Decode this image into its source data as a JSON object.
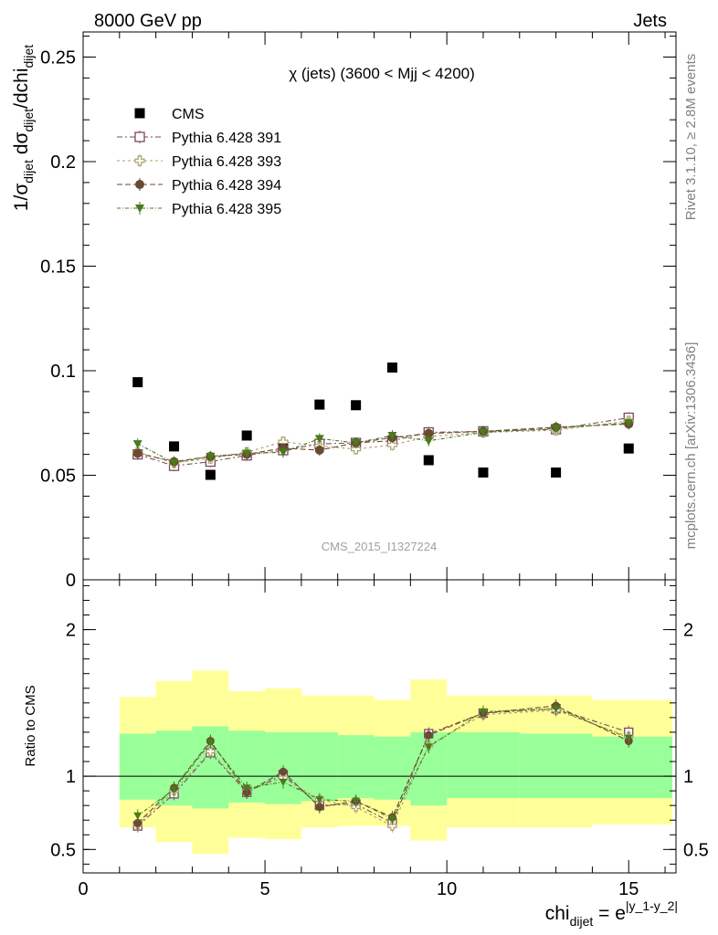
{
  "header": {
    "left": "8000 GeV pp",
    "right": "Jets"
  },
  "side_labels": {
    "rivet": "Rivet 3.1.10, ≥ 2.8M events",
    "mcplots": "mcplots.cern.ch [arXiv:1306.3436]"
  },
  "watermark": "CMS_2015_I1327224",
  "colors": {
    "cms": "#000000",
    "p391": "#7b4a5e",
    "p393": "#a8a06a",
    "p394": "#6b4a32",
    "p395": "#4a7a1c",
    "band_inner": "#99ff99",
    "band_outer": "#ffff99"
  },
  "chart_data": [
    {
      "type": "scatter",
      "title": "χ (jets) (3600 < Mjj < 4200)",
      "ylabel": "1/σ_dijet dσ_dijet/dchi_dijet",
      "xlim": [
        0,
        16.3
      ],
      "ylim": [
        0,
        0.262
      ],
      "yticks": [
        0,
        0.05,
        0.1,
        0.15,
        0.2,
        0.25
      ],
      "yticklabels": [
        "0",
        "0.05",
        "0.1",
        "0.15",
        "0.2",
        "0.25"
      ],
      "x": [
        1.5,
        2.5,
        3.5,
        4.5,
        5.5,
        6.5,
        7.5,
        8.5,
        9.5,
        11,
        13,
        15
      ],
      "series": [
        {
          "name": "CMS",
          "marker": "square",
          "values": [
            0.0945,
            0.0638,
            0.0502,
            0.069,
            0.0632,
            0.0838,
            0.0835,
            0.1015,
            0.0572,
            0.0513,
            0.0513,
            0.0628
          ]
        },
        {
          "name": "Pythia 6.428 391",
          "marker": "open-square",
          "values": [
            0.06,
            0.0545,
            0.0565,
            0.0595,
            0.062,
            0.065,
            0.0655,
            0.0665,
            0.0705,
            0.071,
            0.072,
            0.0775
          ]
        },
        {
          "name": "Pythia 6.428 393",
          "marker": "open-cross",
          "values": [
            0.061,
            0.056,
            0.058,
            0.061,
            0.066,
            0.064,
            0.0625,
            0.0645,
            0.0685,
            0.0705,
            0.0715,
            0.076
          ]
        },
        {
          "name": "Pythia 6.428 394",
          "marker": "circle",
          "values": [
            0.0605,
            0.0565,
            0.059,
            0.06,
            0.063,
            0.062,
            0.0655,
            0.068,
            0.07,
            0.071,
            0.073,
            0.0745
          ]
        },
        {
          "name": "Pythia 6.428 395",
          "marker": "triangle-down",
          "values": [
            0.065,
            0.056,
            0.059,
            0.0605,
            0.061,
            0.0675,
            0.0655,
            0.069,
            0.0665,
            0.0705,
            0.0725,
            0.075
          ]
        }
      ]
    },
    {
      "type": "scatter",
      "ylabel": "Ratio to CMS",
      "xlabel": "chi_dijet = e^|y_1-y_2|",
      "xlim": [
        0,
        16.3
      ],
      "ylim": [
        0.34,
        2.34
      ],
      "xticks": [
        0,
        5,
        10,
        15
      ],
      "xticklabels": [
        "0",
        "5",
        "10",
        "15"
      ],
      "yticks": [
        0.5,
        1,
        2
      ],
      "yticklabels": [
        "0.5",
        "1",
        "2"
      ],
      "reference_line": 1,
      "bands": [
        {
          "x0": 1,
          "x1": 2,
          "inner": [
            0.84,
            1.29
          ],
          "outer": [
            0.65,
            1.54
          ]
        },
        {
          "x0": 2,
          "x1": 3,
          "inner": [
            0.8,
            1.31
          ],
          "outer": [
            0.55,
            1.65
          ]
        },
        {
          "x0": 3,
          "x1": 4,
          "inner": [
            0.78,
            1.34
          ],
          "outer": [
            0.47,
            1.72
          ]
        },
        {
          "x0": 4,
          "x1": 5,
          "inner": [
            0.82,
            1.31
          ],
          "outer": [
            0.58,
            1.58
          ]
        },
        {
          "x0": 5,
          "x1": 6,
          "inner": [
            0.81,
            1.3
          ],
          "outer": [
            0.57,
            1.6
          ]
        },
        {
          "x0": 6,
          "x1": 7,
          "inner": [
            0.83,
            1.3
          ],
          "outer": [
            0.65,
            1.55
          ]
        },
        {
          "x0": 7,
          "x1": 8,
          "inner": [
            0.85,
            1.28
          ],
          "outer": [
            0.66,
            1.55
          ]
        },
        {
          "x0": 8,
          "x1": 9,
          "inner": [
            0.84,
            1.27
          ],
          "outer": [
            0.66,
            1.52
          ]
        },
        {
          "x0": 9,
          "x1": 10,
          "inner": [
            0.8,
            1.3
          ],
          "outer": [
            0.56,
            1.66
          ]
        },
        {
          "x0": 10,
          "x1": 12,
          "inner": [
            0.85,
            1.3
          ],
          "outer": [
            0.65,
            1.55
          ]
        },
        {
          "x0": 12,
          "x1": 14,
          "inner": [
            0.85,
            1.29
          ],
          "outer": [
            0.65,
            1.55
          ]
        },
        {
          "x0": 14,
          "x1": 16.2,
          "inner": [
            0.85,
            1.27
          ],
          "outer": [
            0.67,
            1.52
          ]
        }
      ],
      "x": [
        1.5,
        2.5,
        3.5,
        4.5,
        5.5,
        6.5,
        7.5,
        8.5,
        9.5,
        11,
        13,
        15
      ],
      "series": [
        {
          "name": "Pythia 6.428 391",
          "marker": "open-square",
          "values": [
            0.66,
            0.88,
            1.16,
            0.89,
            1.01,
            0.8,
            0.81,
            0.68,
            1.29,
            1.43,
            1.46,
            1.3
          ]
        },
        {
          "name": "Pythia 6.428 393",
          "marker": "open-cross",
          "values": [
            0.67,
            0.9,
            1.17,
            0.9,
            0.99,
            0.84,
            0.79,
            0.66,
            1.21,
            1.42,
            1.45,
            1.27
          ]
        },
        {
          "name": "Pythia 6.428 394",
          "marker": "circle",
          "values": [
            0.68,
            0.92,
            1.24,
            0.89,
            1.03,
            0.79,
            0.83,
            0.72,
            1.28,
            1.43,
            1.48,
            1.24
          ]
        },
        {
          "name": "Pythia 6.428 395",
          "marker": "triangle-down",
          "values": [
            0.73,
            0.91,
            1.23,
            0.92,
            0.96,
            0.84,
            0.83,
            0.71,
            1.2,
            1.44,
            1.46,
            1.26
          ]
        }
      ]
    }
  ]
}
